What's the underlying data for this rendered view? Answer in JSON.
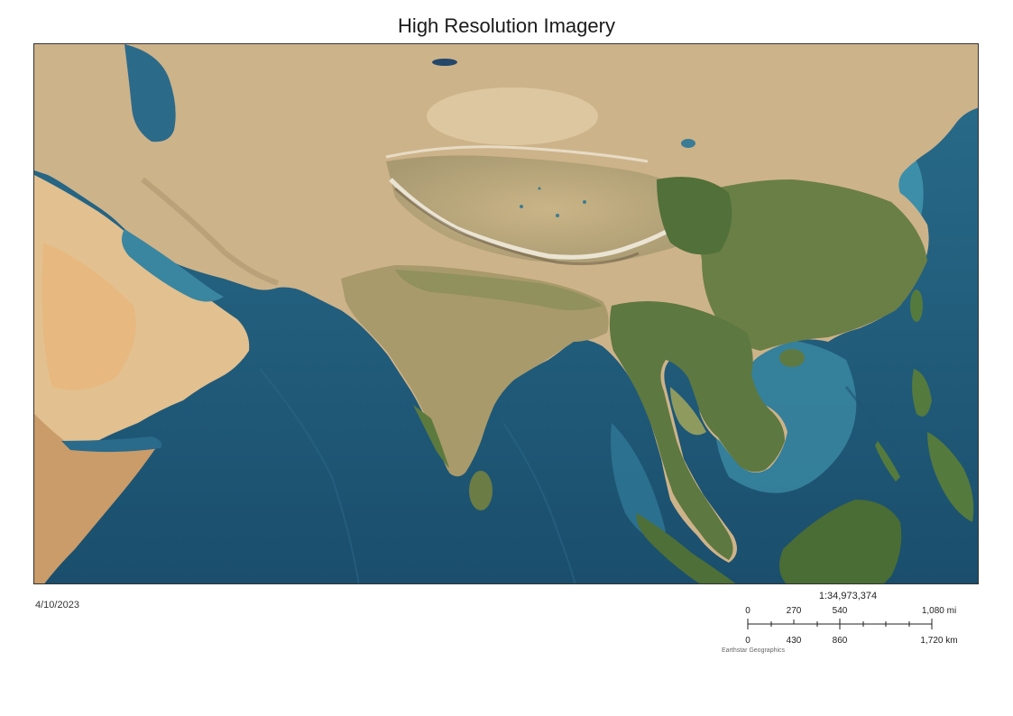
{
  "title": "High Resolution Imagery",
  "date": "4/10/2023",
  "scale": {
    "ratio": "1:34,973,374",
    "miles": [
      "0",
      "270",
      "540",
      "1,080 mi"
    ],
    "km": [
      "0",
      "430",
      "860",
      "1,720 km"
    ]
  },
  "credits": "Earthstar Geographics",
  "colors": {
    "ocean": "#1f5e80",
    "shallow": "#3a89a3",
    "desert": "#d9bf95",
    "sand": "#e3c597",
    "vegetation": "#5f7a3d",
    "forest": "#4c6a34",
    "mountain": "#ede3cf"
  }
}
